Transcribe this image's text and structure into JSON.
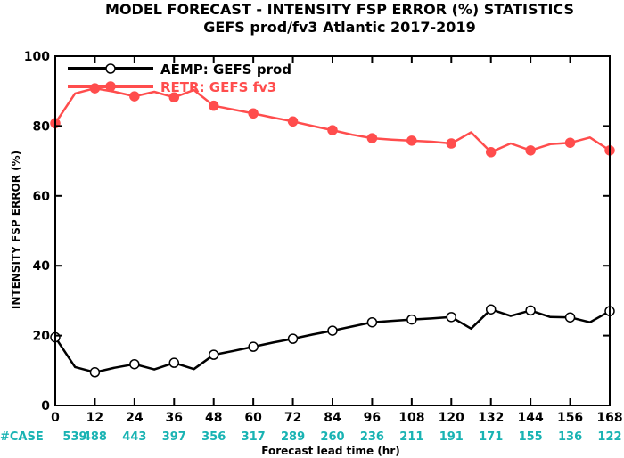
{
  "chart_data": {
    "type": "line",
    "title": "MODEL FORECAST - INTENSITY FSP ERROR (%) STATISTICS",
    "subtitle": "GEFS prod/fv3 Atlantic 2017-2019",
    "xlabel": "Forecast lead time (hr)",
    "ylabel": "INTENSITY FSP ERROR (%)",
    "xlim": [
      0,
      168
    ],
    "ylim": [
      0,
      100
    ],
    "xticks": [
      "0",
      "12",
      "24",
      "36",
      "48",
      "60",
      "72",
      "84",
      "96",
      "108",
      "120",
      "132",
      "144",
      "156",
      "168"
    ],
    "yticks": [
      "0",
      "20",
      "40",
      "60",
      "80",
      "100"
    ],
    "x": [
      0,
      6,
      12,
      18,
      24,
      30,
      36,
      42,
      48,
      54,
      60,
      66,
      72,
      78,
      84,
      90,
      96,
      102,
      108,
      114,
      120,
      126,
      132,
      138,
      144,
      150,
      156,
      162,
      168
    ],
    "series": [
      {
        "name": "AEMP: GEFS prod",
        "color": "#000000",
        "values": [
          19.5,
          11.0,
          9.5,
          10.8,
          11.8,
          10.3,
          12.2,
          10.4,
          14.5,
          15.6,
          16.8,
          18.0,
          19.1,
          20.3,
          21.4,
          22.6,
          23.8,
          24.2,
          24.6,
          24.9,
          25.3,
          22.0,
          27.5,
          25.6,
          27.2,
          25.3,
          25.2,
          23.8,
          27.0
        ]
      },
      {
        "name": "RETR: GEFS fv3",
        "color": "#ff4d4d",
        "values": [
          80.8,
          89.3,
          90.8,
          89.8,
          88.5,
          89.8,
          88.2,
          90.3,
          85.8,
          84.7,
          83.6,
          82.4,
          81.3,
          80.0,
          78.8,
          77.5,
          76.5,
          76.1,
          75.8,
          75.5,
          75.0,
          78.2,
          72.5,
          75.0,
          73.0,
          74.8,
          75.2,
          76.7,
          73.0
        ]
      }
    ],
    "case_label": "#CASE",
    "case_counts": [
      "539",
      "488",
      "443",
      "397",
      "356",
      "317",
      "289",
      "260",
      "236",
      "211",
      "191",
      "171",
      "155",
      "136",
      "122"
    ],
    "case_color": "#19b3b3",
    "legend_position": "top-left",
    "grid": false
  }
}
